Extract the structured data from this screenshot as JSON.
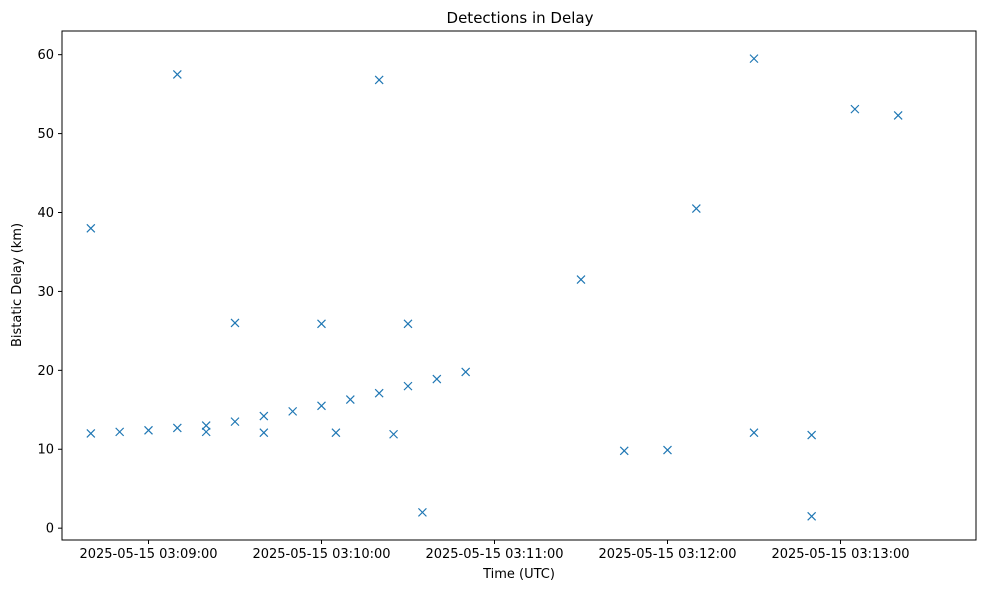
{
  "chart_data": {
    "type": "scatter",
    "title": "Detections in Delay",
    "xlabel": "Time (UTC)",
    "ylabel": "Bistatic Delay (km)",
    "marker": "x",
    "color": "#1f77b4",
    "x_start": "2025-05-15 03:08:07",
    "x_end": "2025-05-15 03:13:21",
    "xlim": [
      "2025-05-15 03:08:30",
      "2025-05-15 03:13:47"
    ],
    "ylim": [
      -1.5,
      63
    ],
    "grid": false,
    "xticks": [
      {
        "label": "2025-05-15 03:09:00"
      },
      {
        "label": "2025-05-15 03:10:00"
      },
      {
        "label": "2025-05-15 03:11:00"
      },
      {
        "label": "2025-05-15 03:12:00"
      },
      {
        "label": "2025-05-15 03:13:00"
      }
    ],
    "yticks": [
      0,
      10,
      20,
      30,
      40,
      50,
      60
    ],
    "series": [
      {
        "values": [
          {
            "x": "2025-05-15 03:08:40",
            "y": 12.0
          },
          {
            "x": "2025-05-15 03:08:50",
            "y": 12.2
          },
          {
            "x": "2025-05-15 03:09:00",
            "y": 12.4
          },
          {
            "x": "2025-05-15 03:09:10",
            "y": 12.7
          },
          {
            "x": "2025-05-15 03:09:20",
            "y": 13.0
          },
          {
            "x": "2025-05-15 03:09:30",
            "y": 13.5
          },
          {
            "x": "2025-05-15 03:09:40",
            "y": 14.2
          },
          {
            "x": "2025-05-15 03:09:50",
            "y": 14.8
          },
          {
            "x": "2025-05-15 03:10:00",
            "y": 15.5
          },
          {
            "x": "2025-05-15 03:10:10",
            "y": 16.3
          },
          {
            "x": "2025-05-15 03:10:20",
            "y": 17.1
          },
          {
            "x": "2025-05-15 03:10:30",
            "y": 18.0
          },
          {
            "x": "2025-05-15 03:10:40",
            "y": 18.9
          },
          {
            "x": "2025-05-15 03:10:50",
            "y": 19.8
          },
          {
            "x": "2025-05-15 03:09:30",
            "y": 26.0
          },
          {
            "x": "2025-05-15 03:10:00",
            "y": 25.9
          },
          {
            "x": "2025-05-15 03:10:30",
            "y": 25.9
          },
          {
            "x": "2025-05-15 03:09:20",
            "y": 12.2
          },
          {
            "x": "2025-05-15 03:09:40",
            "y": 12.1
          },
          {
            "x": "2025-05-15 03:10:05",
            "y": 12.1
          },
          {
            "x": "2025-05-15 03:10:25",
            "y": 11.9
          },
          {
            "x": "2025-05-15 03:11:45",
            "y": 9.8
          },
          {
            "x": "2025-05-15 03:12:00",
            "y": 9.9
          },
          {
            "x": "2025-05-15 03:12:30",
            "y": 12.1
          },
          {
            "x": "2025-05-15 03:12:50",
            "y": 11.8
          },
          {
            "x": "2025-05-15 03:10:20",
            "y": 56.8
          },
          {
            "x": "2025-05-15 03:13:05",
            "y": 53.1
          },
          {
            "x": "2025-05-15 03:13:20",
            "y": 52.3
          },
          {
            "x": "2025-05-15 03:12:30",
            "y": 59.5
          },
          {
            "x": "2025-05-15 03:09:10",
            "y": 57.5
          },
          {
            "x": "2025-05-15 03:10:35",
            "y": 2.0
          },
          {
            "x": "2025-05-15 03:12:50",
            "y": 1.5
          },
          {
            "x": "2025-05-15 03:11:30",
            "y": 31.5
          },
          {
            "x": "2025-05-15 03:12:10",
            "y": 40.5
          },
          {
            "x": "2025-05-15 03:08:40",
            "y": 38.0
          }
        ]
      }
    ]
  }
}
